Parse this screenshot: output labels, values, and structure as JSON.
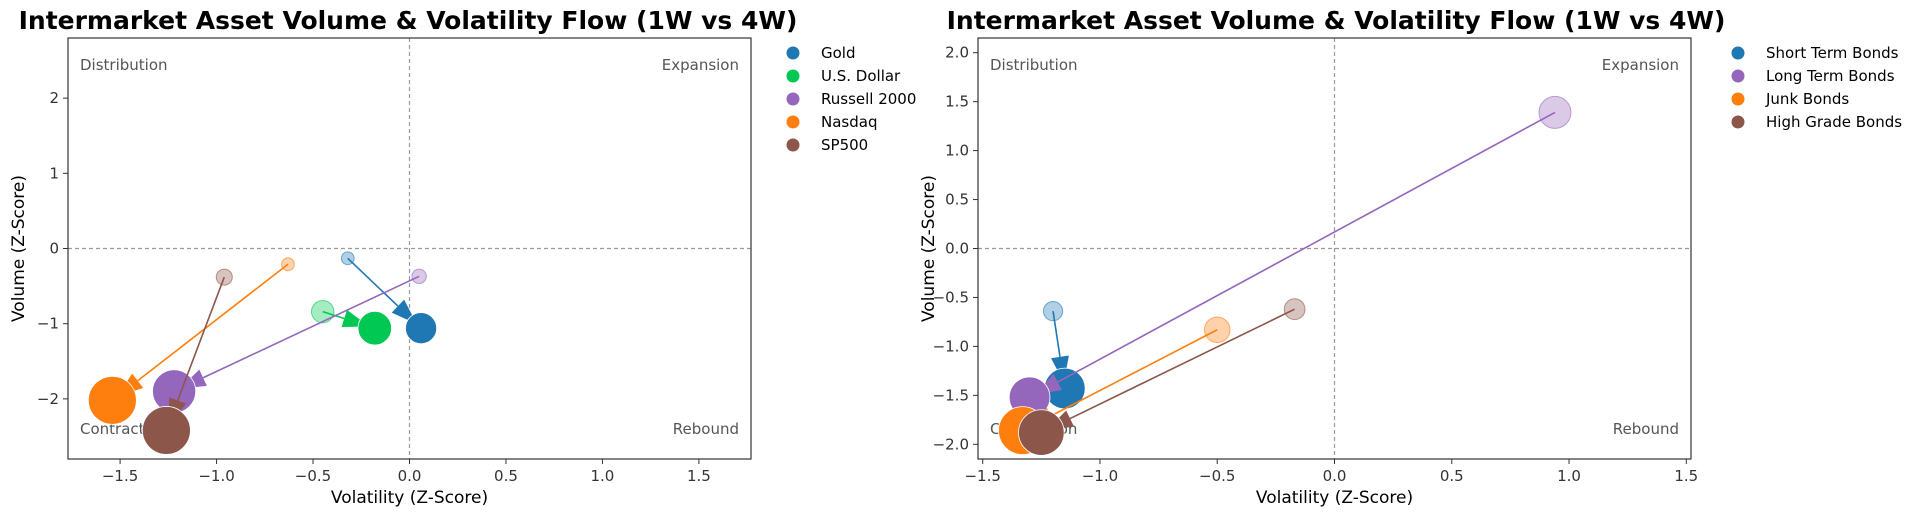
{
  "chart_data": [
    {
      "type": "scatter",
      "title": "Intermarket Asset Volume & Volatility Flow (1W vs 4W)",
      "xlabel": "Volatility (Z-Score)",
      "ylabel": "Volume (Z-Score)",
      "xlim": [
        -1.77,
        1.77
      ],
      "ylim": [
        -2.8,
        2.8
      ],
      "xticks": [
        -1.5,
        -1.0,
        -0.5,
        0.0,
        0.5,
        1.0,
        1.5
      ],
      "yticks": [
        -2,
        -1,
        0,
        1,
        2
      ],
      "xtick_labels": [
        "−1.5",
        "−1.0",
        "−0.5",
        "0.0",
        "0.5",
        "1.0",
        "1.5"
      ],
      "ytick_labels": [
        "−2",
        "−1",
        "0",
        "1",
        "2"
      ],
      "grid": false,
      "reference_lines": {
        "x": 0,
        "y": 0
      },
      "legend_position": "outside-top-right",
      "quadrants": {
        "top_left": "Distribution",
        "top_right": "Expansion",
        "bottom_left": "Contraction",
        "bottom_right": "Rebound"
      },
      "series": [
        {
          "name": "Gold",
          "color": "#1f77b4",
          "start": {
            "x": -0.32,
            "y": -0.13
          },
          "end": {
            "x": 0.06,
            "y": -1.06
          },
          "start_size": 0.8,
          "end_size": 1.3
        },
        {
          "name": "U.S. Dollar",
          "color": "#00c853",
          "start": {
            "x": -0.45,
            "y": -0.84
          },
          "end": {
            "x": -0.18,
            "y": -1.06
          },
          "start_size": 1.4,
          "end_size": 1.4
        },
        {
          "name": "Russell 2000",
          "color": "#9467bd",
          "start": {
            "x": 0.05,
            "y": -0.37
          },
          "end": {
            "x": -1.22,
            "y": -1.9
          },
          "start_size": 0.9,
          "end_size": 1.8
        },
        {
          "name": "Nasdaq",
          "color": "#ff7f0e",
          "start": {
            "x": -0.63,
            "y": -0.21
          },
          "end": {
            "x": -1.54,
            "y": -2.02
          },
          "start_size": 0.8,
          "end_size": 2.0
        },
        {
          "name": "SP500",
          "color": "#8c564b",
          "start": {
            "x": -0.96,
            "y": -0.38
          },
          "end": {
            "x": -1.26,
            "y": -2.42
          },
          "start_size": 1.0,
          "end_size": 2.0
        }
      ]
    },
    {
      "type": "scatter",
      "title": "Intermarket Asset Volume & Volatility Flow (1W vs 4W)",
      "xlabel": "Volatility (Z-Score)",
      "ylabel": "Volume (Z-Score)",
      "xlim": [
        -1.52,
        1.52
      ],
      "ylim": [
        -2.15,
        2.15
      ],
      "xticks": [
        -1.5,
        -1.0,
        -0.5,
        0.0,
        0.5,
        1.0,
        1.5
      ],
      "yticks": [
        -2.0,
        -1.5,
        -1.0,
        -0.5,
        0.0,
        0.5,
        1.0,
        1.5,
        2.0
      ],
      "xtick_labels": [
        "−1.5",
        "−1.0",
        "−0.5",
        "0.0",
        "0.5",
        "1.0",
        "1.5"
      ],
      "ytick_labels": [
        "−2.0",
        "−1.5",
        "−1.0",
        "−0.5",
        "0.0",
        "0.5",
        "1.0",
        "1.5",
        "2.0"
      ],
      "grid": false,
      "reference_lines": {
        "x": 0,
        "y": 0
      },
      "legend_position": "outside-top-right",
      "quadrants": {
        "top_left": "Distribution",
        "top_right": "Expansion",
        "bottom_left": "Contraction",
        "bottom_right": "Rebound"
      },
      "series": [
        {
          "name": "Short Term Bonds",
          "color": "#1f77b4",
          "start": {
            "x": -1.2,
            "y": -0.64
          },
          "end": {
            "x": -1.15,
            "y": -1.43
          },
          "start_size": 1.2,
          "end_size": 1.7
        },
        {
          "name": "Long Term Bonds",
          "color": "#9467bd",
          "start": {
            "x": 0.94,
            "y": 1.39
          },
          "end": {
            "x": -1.3,
            "y": -1.52
          },
          "start_size": 2.0,
          "end_size": 1.7
        },
        {
          "name": "Junk Bonds",
          "color": "#ff7f0e",
          "start": {
            "x": -0.5,
            "y": -0.83
          },
          "end": {
            "x": -1.33,
            "y": -1.86
          },
          "start_size": 1.6,
          "end_size": 2.0
        },
        {
          "name": "High Grade Bonds",
          "color": "#8c564b",
          "start": {
            "x": -0.17,
            "y": -0.62
          },
          "end": {
            "x": -1.25,
            "y": -1.88
          },
          "start_size": 1.3,
          "end_size": 1.9
        }
      ]
    }
  ]
}
